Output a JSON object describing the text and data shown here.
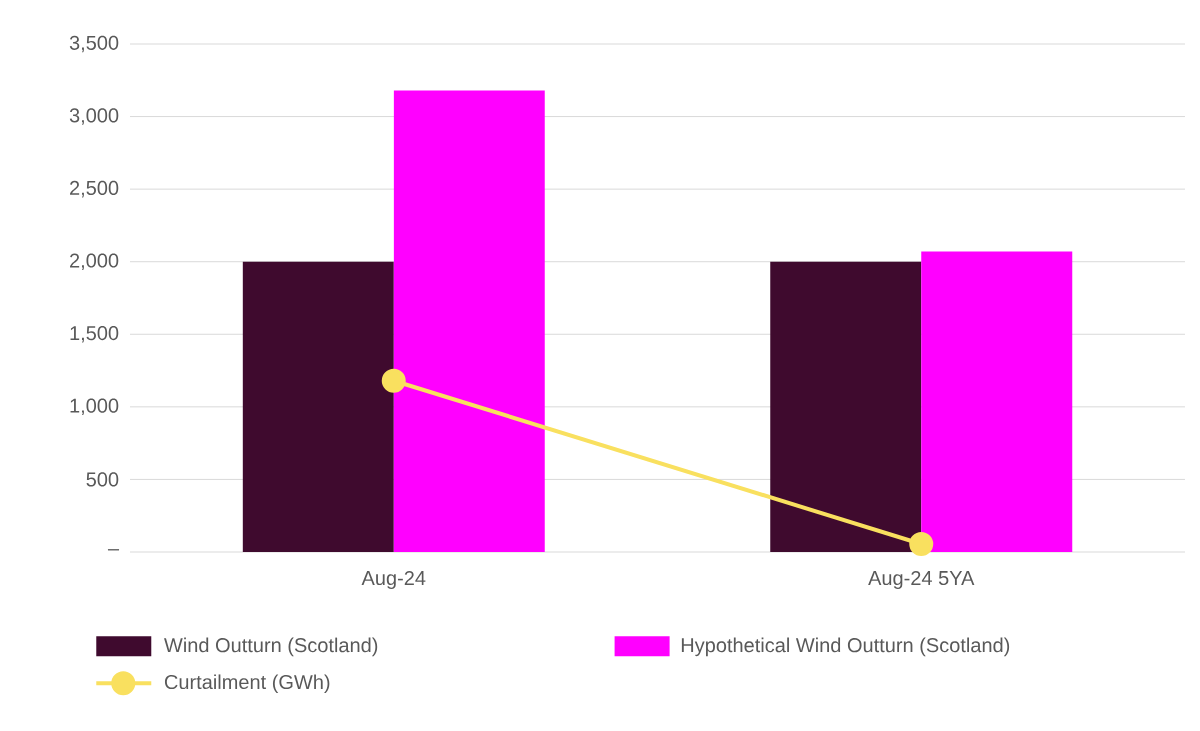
{
  "chart_data": {
    "type": "bar",
    "categories": [
      "Aug-24",
      "Aug-24 5YA"
    ],
    "series": [
      {
        "name": "Wind Outturn (Scotland)",
        "color": "#3f0a2e",
        "values": [
          2000,
          2000
        ]
      },
      {
        "name": "Hypothetical Wind Outturn (Scotland)",
        "color": "#ff00ff",
        "values": [
          3180,
          2070
        ]
      },
      {
        "name": "Curtailment (GWh)",
        "type": "line",
        "color": "#f9e05f",
        "marker": "circle",
        "values": [
          1180,
          55
        ]
      }
    ],
    "ylim": [
      0,
      3500
    ],
    "yticks": [
      {
        "value": 0,
        "label": "–"
      },
      500,
      {
        "value": 1000,
        "label": "1,000"
      },
      {
        "value": 1500,
        "label": "1,500"
      },
      {
        "value": 2000,
        "label": "2,000"
      },
      {
        "value": 2500,
        "label": "2,500"
      },
      {
        "value": 3000,
        "label": "3,000"
      },
      {
        "value": 3500,
        "label": "3,500"
      }
    ],
    "grid": "y",
    "legend": "bottom"
  }
}
